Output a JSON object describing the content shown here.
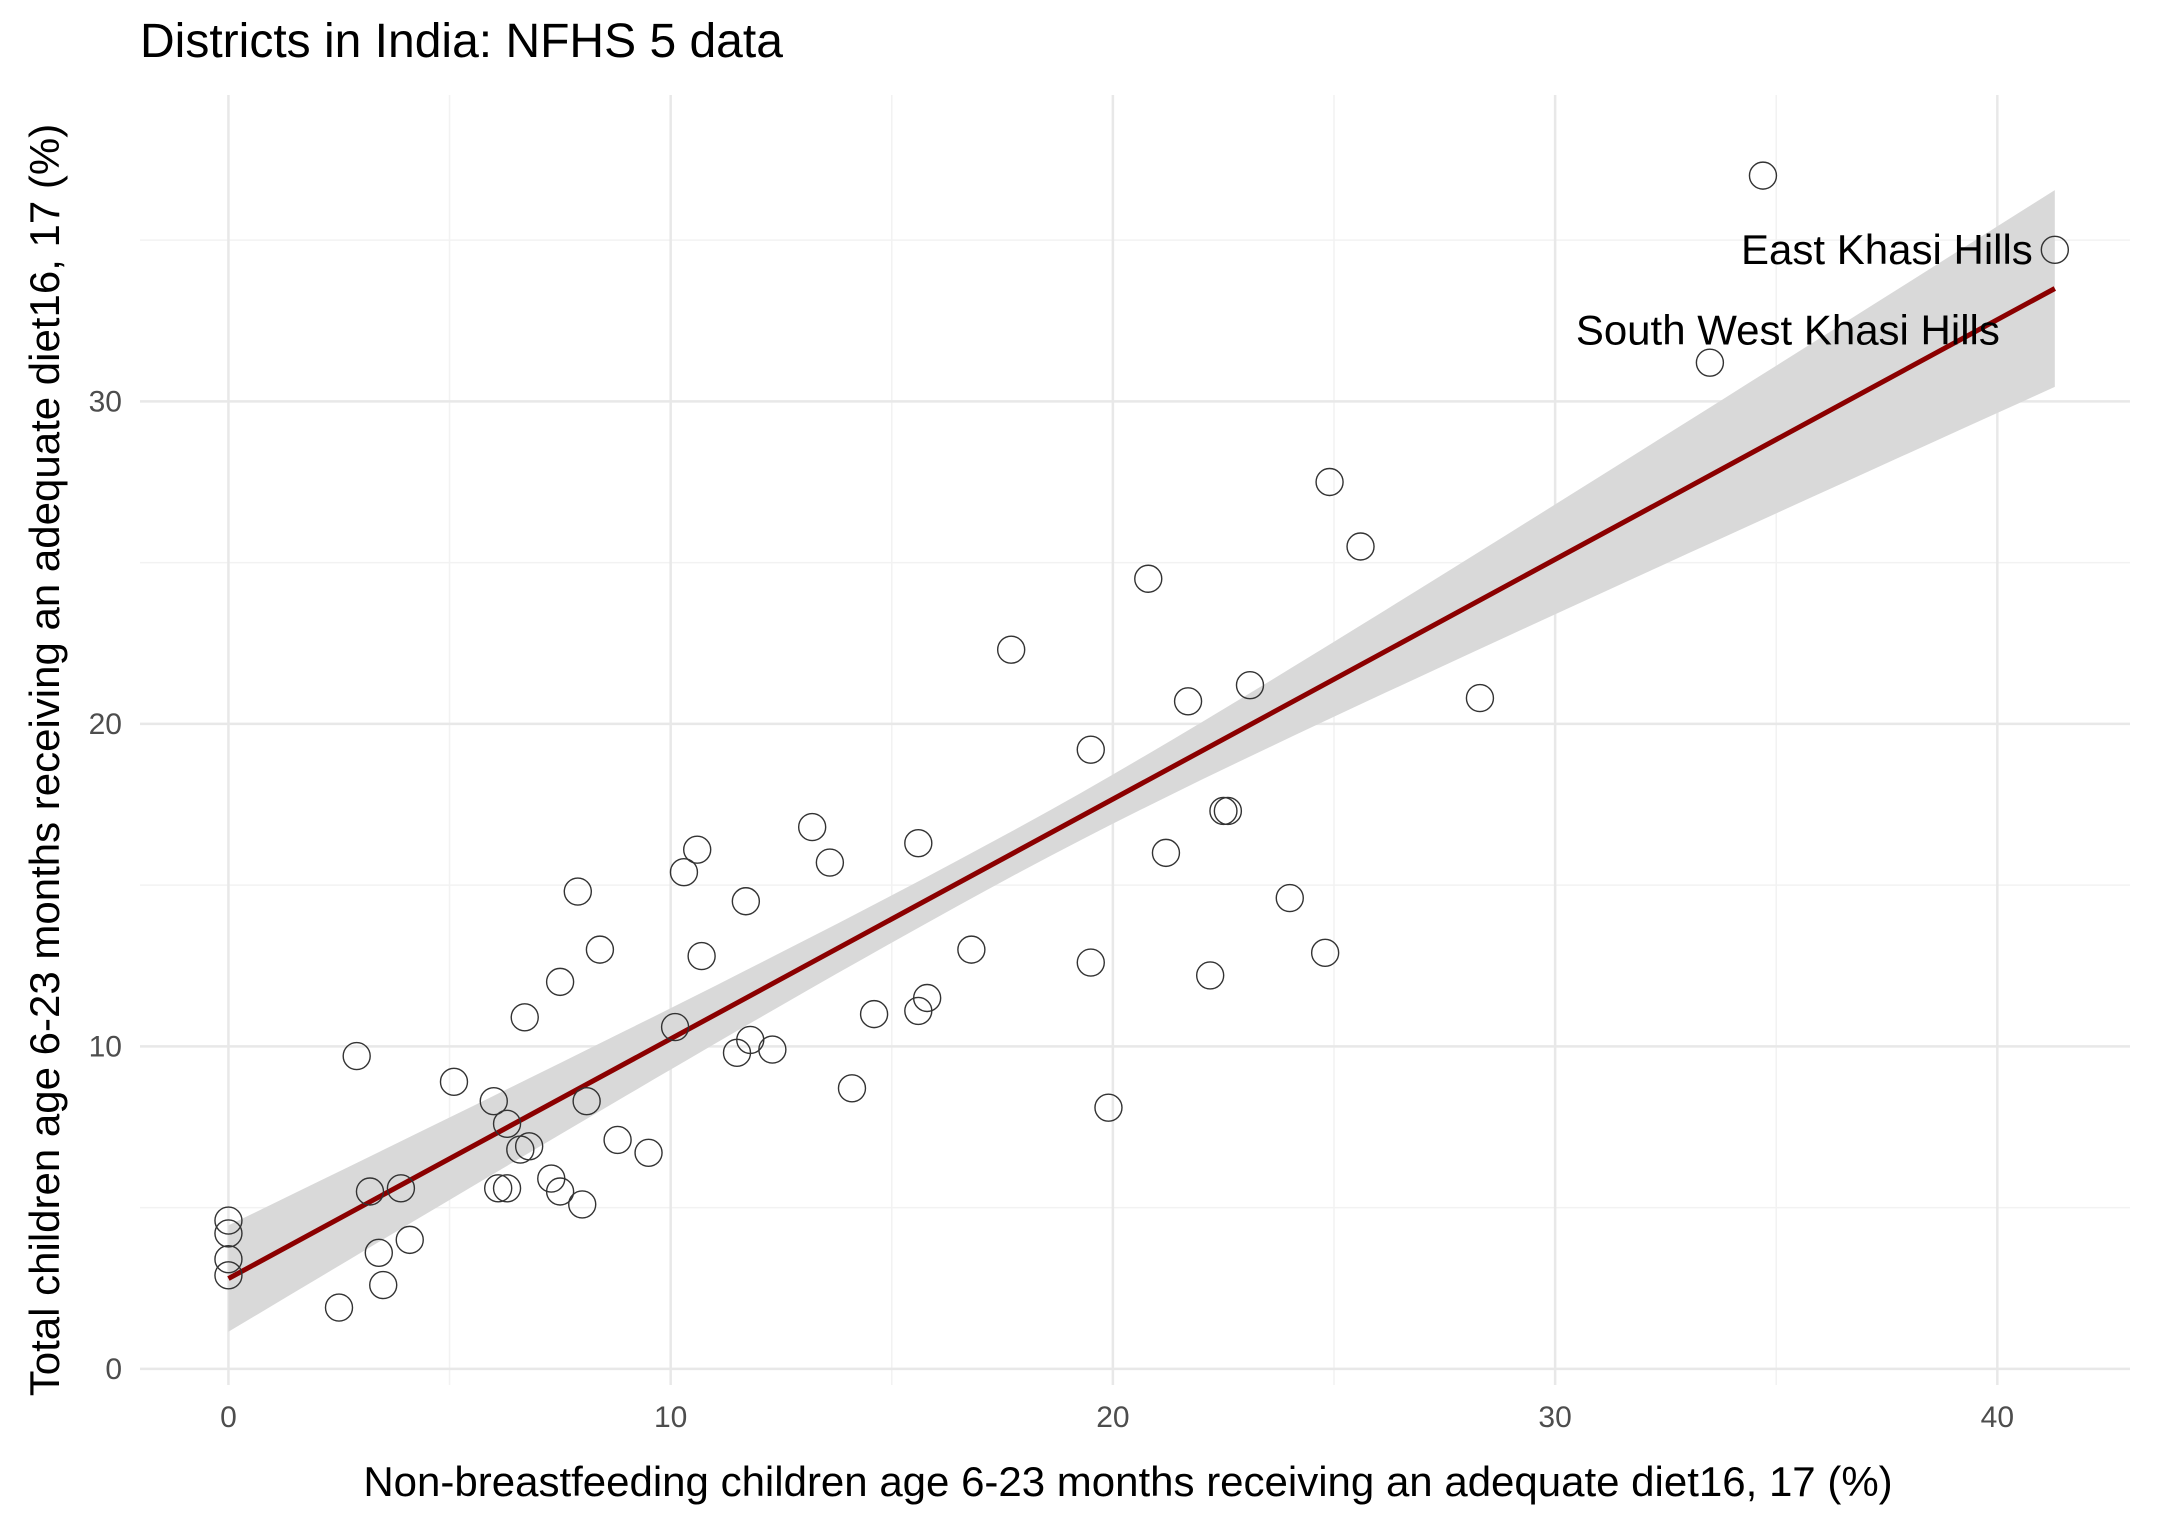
{
  "chart_data": {
    "type": "scatter",
    "title": "Districts in India: NFHS 5 data",
    "xlabel": "Non-breastfeeding children age 6-23 months receiving an adequate diet16, 17 (%)",
    "ylabel": "Total children age 6-23 months receiving an adequate diet16, 17  (%)",
    "xlim": [
      -2,
      43
    ],
    "ylim": [
      -0.5,
      39.5
    ],
    "x_ticks": [
      0,
      10,
      20,
      30,
      40
    ],
    "y_ticks": [
      0,
      10,
      20,
      30
    ],
    "grid": true,
    "marker": "hollow-circle",
    "regression": {
      "method": "linear",
      "color": "#8b0000",
      "band_color": "#d9d9d9",
      "x_range": [
        0,
        41.3
      ],
      "start": {
        "y": 2.8,
        "lower": 1.1,
        "upper": 4.4
      },
      "mid": {
        "x": 17.6,
        "y": 17.5,
        "lower": 16.8,
        "upper": 18.2
      },
      "end": {
        "y": 33.5,
        "lower": 30.5,
        "upper": 36.6
      }
    },
    "points": [
      {
        "x": 0,
        "y": 4.6
      },
      {
        "x": 0,
        "y": 4.2
      },
      {
        "x": 0,
        "y": 3.4
      },
      {
        "x": 0,
        "y": 2.9
      },
      {
        "x": 2.5,
        "y": 1.9
      },
      {
        "x": 2.9,
        "y": 9.7
      },
      {
        "x": 3.2,
        "y": 5.5
      },
      {
        "x": 3.4,
        "y": 3.6
      },
      {
        "x": 3.5,
        "y": 2.6
      },
      {
        "x": 3.9,
        "y": 5.6
      },
      {
        "x": 4.1,
        "y": 4.0
      },
      {
        "x": 5.1,
        "y": 8.9
      },
      {
        "x": 6.0,
        "y": 8.3
      },
      {
        "x": 6.1,
        "y": 5.6
      },
      {
        "x": 6.3,
        "y": 7.6
      },
      {
        "x": 6.3,
        "y": 5.6
      },
      {
        "x": 6.6,
        "y": 6.8
      },
      {
        "x": 6.7,
        "y": 10.9
      },
      {
        "x": 6.8,
        "y": 6.9
      },
      {
        "x": 7.3,
        "y": 5.9
      },
      {
        "x": 7.5,
        "y": 12.0
      },
      {
        "x": 7.5,
        "y": 5.5
      },
      {
        "x": 7.9,
        "y": 14.8
      },
      {
        "x": 8.0,
        "y": 5.1
      },
      {
        "x": 8.1,
        "y": 8.3
      },
      {
        "x": 8.4,
        "y": 13.0
      },
      {
        "x": 8.8,
        "y": 7.1
      },
      {
        "x": 9.5,
        "y": 6.7
      },
      {
        "x": 10.1,
        "y": 10.6
      },
      {
        "x": 10.3,
        "y": 15.4
      },
      {
        "x": 10.6,
        "y": 16.1
      },
      {
        "x": 10.7,
        "y": 12.8
      },
      {
        "x": 11.5,
        "y": 9.8
      },
      {
        "x": 11.7,
        "y": 14.5
      },
      {
        "x": 11.8,
        "y": 10.2
      },
      {
        "x": 12.3,
        "y": 9.9
      },
      {
        "x": 13.2,
        "y": 16.8
      },
      {
        "x": 13.6,
        "y": 15.7
      },
      {
        "x": 14.1,
        "y": 8.7
      },
      {
        "x": 14.6,
        "y": 11.0
      },
      {
        "x": 15.6,
        "y": 16.3
      },
      {
        "x": 15.6,
        "y": 11.1
      },
      {
        "x": 15.8,
        "y": 11.5
      },
      {
        "x": 16.8,
        "y": 13.0
      },
      {
        "x": 17.7,
        "y": 22.3
      },
      {
        "x": 19.5,
        "y": 19.2
      },
      {
        "x": 19.5,
        "y": 12.6
      },
      {
        "x": 19.9,
        "y": 8.1
      },
      {
        "x": 20.8,
        "y": 24.5
      },
      {
        "x": 21.2,
        "y": 16.0
      },
      {
        "x": 21.7,
        "y": 20.7
      },
      {
        "x": 22.2,
        "y": 12.2
      },
      {
        "x": 22.5,
        "y": 17.3
      },
      {
        "x": 22.6,
        "y": 17.3
      },
      {
        "x": 23.1,
        "y": 21.2
      },
      {
        "x": 24.0,
        "y": 14.6
      },
      {
        "x": 24.8,
        "y": 12.9
      },
      {
        "x": 24.9,
        "y": 27.5
      },
      {
        "x": 25.6,
        "y": 25.5
      },
      {
        "x": 28.3,
        "y": 20.8
      },
      {
        "x": 33.5,
        "y": 31.2
      },
      {
        "x": 34.7,
        "y": 37.0
      },
      {
        "x": 41.3,
        "y": 34.7
      }
    ],
    "annotations": [
      {
        "text": "East Khasi Hills",
        "x": 41.3,
        "y": 34.7
      },
      {
        "text": "South West Khasi Hills",
        "x": 33.5,
        "y": 31.2
      }
    ]
  }
}
